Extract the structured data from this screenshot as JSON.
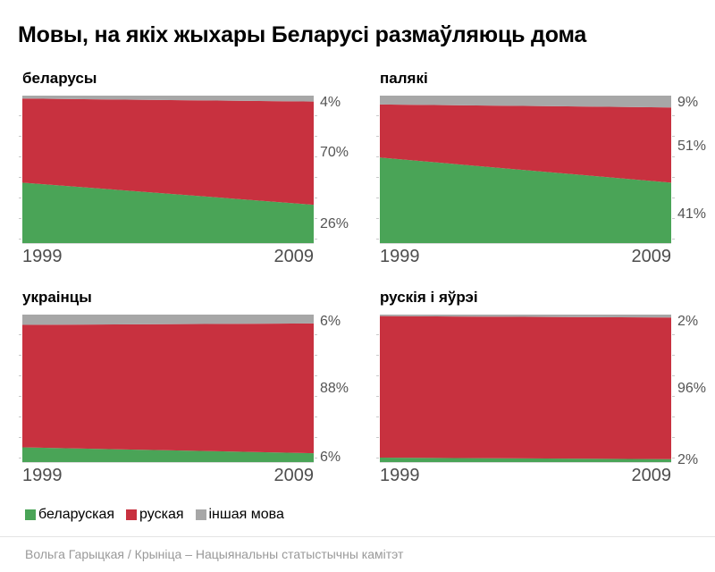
{
  "title": "Мовы, на якіх жыхары Беларусі размаўляюць дома",
  "footer": "Вольга Гарыцкая / Крыніца – Нацыянальны статыстычны камітэт",
  "colors": {
    "belarusian": "#4aa457",
    "russian": "#c8313f",
    "other": "#a7a7a7",
    "value_label_text": "#545454",
    "axis_text": "#4d4d4d",
    "footer_text": "#999999"
  },
  "legend": {
    "items": [
      {
        "label": "беларуская",
        "color_key": "belarusian"
      },
      {
        "label": "руская",
        "color_key": "russian"
      },
      {
        "label": "іншая мова",
        "color_key": "other"
      }
    ]
  },
  "chart_data": {
    "type": "area",
    "stacked": true,
    "x": [
      1999,
      2009
    ],
    "x_tick_labels": [
      "1999",
      "2009"
    ],
    "ylim": [
      0,
      100
    ],
    "unit": "%",
    "grid": false,
    "legend_position": "bottom",
    "panels": [
      {
        "title": "беларусы",
        "series": [
          {
            "name": "беларуская",
            "values": [
              41,
              26
            ]
          },
          {
            "name": "руская",
            "values": [
              57,
              70
            ]
          },
          {
            "name": "іншая мова",
            "values": [
              2,
              4
            ]
          }
        ],
        "value_labels": [
          "4%",
          "70%",
          "26%"
        ]
      },
      {
        "title": "палякі",
        "series": [
          {
            "name": "беларуская",
            "values": [
              58,
              41
            ]
          },
          {
            "name": "руская",
            "values": [
              36,
              51
            ]
          },
          {
            "name": "іншая мова",
            "values": [
              6,
              9
            ]
          }
        ],
        "value_labels": [
          "9%",
          "51%",
          "41%"
        ]
      },
      {
        "title": "украінцы",
        "series": [
          {
            "name": "беларуская",
            "values": [
              10,
              6
            ]
          },
          {
            "name": "руская",
            "values": [
              83,
              88
            ]
          },
          {
            "name": "іншая мова",
            "values": [
              7,
              6
            ]
          }
        ],
        "value_labels": [
          "6%",
          "88%",
          "6%"
        ]
      },
      {
        "title": "рускія і яўрэі",
        "series": [
          {
            "name": "беларуская",
            "values": [
              3,
              2
            ]
          },
          {
            "name": "руская",
            "values": [
              96,
              96
            ]
          },
          {
            "name": "іншая мова",
            "values": [
              1,
              2
            ]
          }
        ],
        "value_labels": [
          "2%",
          "96%",
          "2%"
        ]
      }
    ]
  }
}
